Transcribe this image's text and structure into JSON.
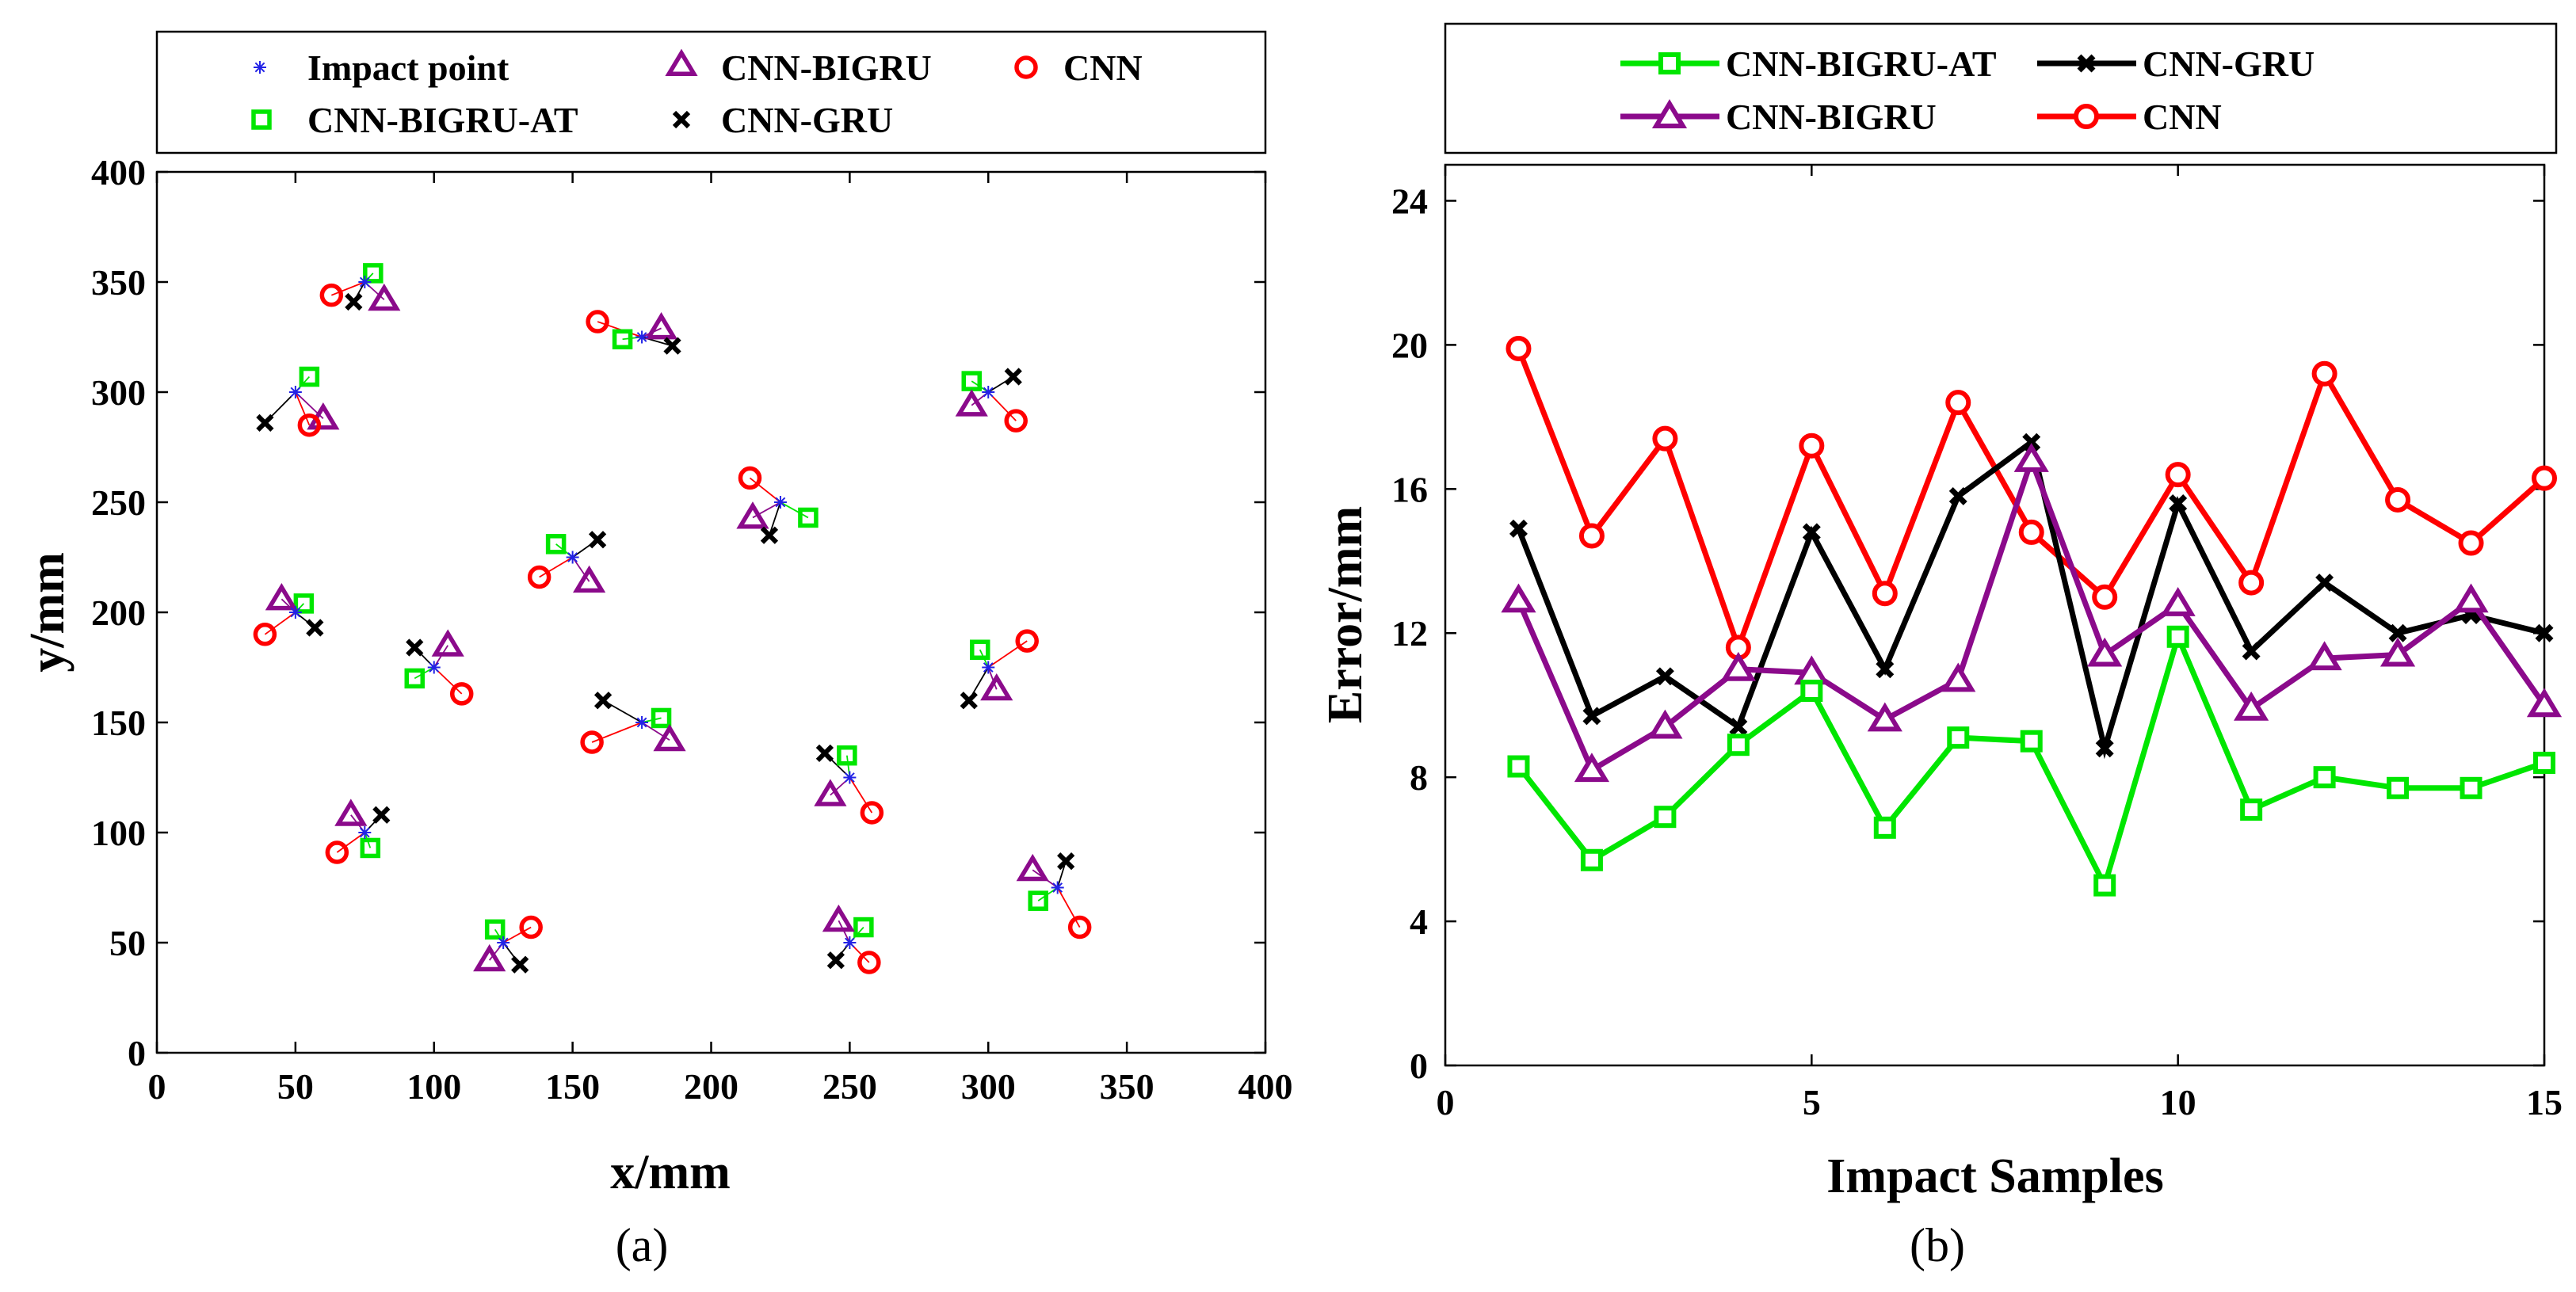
{
  "chart_data": [
    {
      "type": "scatter",
      "panel_label": "(a)",
      "xlabel": "x/mm",
      "ylabel": "y/mm",
      "xlim": [
        0,
        400
      ],
      "ylim": [
        0,
        400
      ],
      "xticks": [
        0,
        50,
        100,
        150,
        200,
        250,
        300,
        350,
        400
      ],
      "yticks": [
        0,
        50,
        100,
        150,
        200,
        250,
        300,
        350,
        400
      ],
      "grid": false,
      "legend": {
        "placement": "top",
        "entries": [
          {
            "key": "impact",
            "label": "Impact point"
          },
          {
            "key": "bigru",
            "label": "CNN-BIGRU"
          },
          {
            "key": "cnn",
            "label": "CNN"
          },
          {
            "key": "at",
            "label": "CNN-BIGRU-AT"
          },
          {
            "key": "gru",
            "label": "CNN-GRU"
          }
        ]
      },
      "styles": {
        "impact": {
          "color": "#2323e6",
          "marker": "asterisk"
        },
        "bigru": {
          "color": "#8b0a8b",
          "marker": "triangle"
        },
        "cnn": {
          "color": "#ff0000",
          "marker": "circle"
        },
        "at": {
          "color": "#00e600",
          "marker": "square"
        },
        "gru": {
          "color": "#000000",
          "marker": "x"
        }
      },
      "groups": [
        {
          "impact": [
            75,
            350
          ],
          "at": [
            78,
            354
          ],
          "bigru": [
            82,
            342
          ],
          "cnn": [
            63,
            344
          ],
          "gru": [
            71,
            341
          ]
        },
        {
          "impact": [
            175,
            325
          ],
          "at": [
            168,
            324
          ],
          "bigru": [
            182,
            329
          ],
          "cnn": [
            159,
            332
          ],
          "gru": [
            186,
            321
          ]
        },
        {
          "impact": [
            50,
            300
          ],
          "at": [
            55,
            307
          ],
          "bigru": [
            60,
            288
          ],
          "cnn": [
            55,
            285
          ],
          "gru": [
            39,
            286
          ]
        },
        {
          "impact": [
            300,
            300
          ],
          "at": [
            294,
            305
          ],
          "bigru": [
            294,
            294
          ],
          "cnn": [
            310,
            287
          ],
          "gru": [
            309,
            307
          ]
        },
        {
          "impact": [
            225,
            250
          ],
          "at": [
            235,
            243
          ],
          "bigru": [
            215,
            243
          ],
          "cnn": [
            214,
            261
          ],
          "gru": [
            221,
            235
          ]
        },
        {
          "impact": [
            150,
            225
          ],
          "at": [
            144,
            231
          ],
          "bigru": [
            156,
            214
          ],
          "cnn": [
            138,
            216
          ],
          "gru": [
            159,
            233
          ]
        },
        {
          "impact": [
            50,
            200
          ],
          "at": [
            53,
            204
          ],
          "bigru": [
            45,
            206
          ],
          "cnn": [
            39,
            190
          ],
          "gru": [
            57,
            193
          ]
        },
        {
          "impact": [
            100,
            175
          ],
          "at": [
            93,
            170
          ],
          "bigru": [
            105,
            185
          ],
          "cnn": [
            110,
            163
          ],
          "gru": [
            93,
            184
          ]
        },
        {
          "impact": [
            300,
            175
          ],
          "at": [
            297,
            183
          ],
          "bigru": [
            303,
            165
          ],
          "cnn": [
            314,
            187
          ],
          "gru": [
            293,
            160
          ]
        },
        {
          "impact": [
            175,
            150
          ],
          "at": [
            182,
            152
          ],
          "bigru": [
            185,
            142
          ],
          "cnn": [
            157,
            141
          ],
          "gru": [
            161,
            160
          ]
        },
        {
          "impact": [
            250,
            125
          ],
          "at": [
            249,
            135
          ],
          "bigru": [
            243,
            117
          ],
          "cnn": [
            258,
            109
          ],
          "gru": [
            241,
            136
          ]
        },
        {
          "impact": [
            75,
            100
          ],
          "at": [
            77,
            93
          ],
          "bigru": [
            70,
            108
          ],
          "cnn": [
            65,
            91
          ],
          "gru": [
            81,
            108
          ]
        },
        {
          "impact": [
            325,
            75
          ],
          "at": [
            318,
            69
          ],
          "bigru": [
            316,
            83
          ],
          "cnn": [
            333,
            57
          ],
          "gru": [
            328,
            87
          ]
        },
        {
          "impact": [
            125,
            50
          ],
          "at": [
            122,
            56
          ],
          "bigru": [
            120,
            42
          ],
          "cnn": [
            135,
            57
          ],
          "gru": [
            131,
            40
          ]
        },
        {
          "impact": [
            250,
            50
          ],
          "at": [
            255,
            57
          ],
          "bigru": [
            246,
            60
          ],
          "cnn": [
            257,
            41
          ],
          "gru": [
            245,
            42
          ]
        }
      ]
    },
    {
      "type": "line",
      "panel_label": "(b)",
      "xlabel": "Impact Samples",
      "ylabel": "Error/mm",
      "xlim": [
        0,
        15
      ],
      "ylim": [
        0,
        25
      ],
      "xticks": [
        0,
        5,
        10,
        15
      ],
      "yticks": [
        0,
        4,
        8,
        12,
        16,
        20,
        24
      ],
      "grid": false,
      "x": [
        1,
        2,
        3,
        4,
        5,
        6,
        7,
        8,
        9,
        10,
        11,
        12,
        13,
        14,
        15
      ],
      "legend": {
        "placement": "top",
        "entries": [
          {
            "key": "at",
            "label": "CNN-BIGRU-AT"
          },
          {
            "key": "gru",
            "label": "CNN-GRU"
          },
          {
            "key": "bigru",
            "label": "CNN-BIGRU"
          },
          {
            "key": "cnn",
            "label": "CNN"
          }
        ]
      },
      "series": [
        {
          "key": "cnn",
          "name": "CNN",
          "color": "#ff0000",
          "marker": "circle",
          "values": [
            19.9,
            14.7,
            17.4,
            11.6,
            17.2,
            13.1,
            18.4,
            14.8,
            13.0,
            16.4,
            13.4,
            19.2,
            15.7,
            14.5,
            16.3
          ]
        },
        {
          "key": "gru",
          "name": "CNN-GRU",
          "color": "#000000",
          "marker": "x",
          "values": [
            14.9,
            9.7,
            10.8,
            9.4,
            14.8,
            11.0,
            15.8,
            17.3,
            8.8,
            15.6,
            11.5,
            13.4,
            12.0,
            12.5,
            12.0
          ]
        },
        {
          "key": "bigru",
          "name": "CNN-BIGRU",
          "color": "#8b0a8b",
          "marker": "triangle",
          "values": [
            12.9,
            8.2,
            9.4,
            11.0,
            10.9,
            9.6,
            10.7,
            16.8,
            11.4,
            12.8,
            9.9,
            11.3,
            11.4,
            12.9,
            10.0
          ]
        },
        {
          "key": "at",
          "name": "CNN-BIGRU-AT",
          "color": "#00e600",
          "marker": "square",
          "values": [
            8.3,
            5.7,
            6.9,
            8.9,
            10.4,
            6.6,
            9.1,
            9.0,
            5.0,
            11.9,
            7.1,
            8.0,
            7.7,
            7.7,
            8.4
          ]
        }
      ]
    }
  ]
}
